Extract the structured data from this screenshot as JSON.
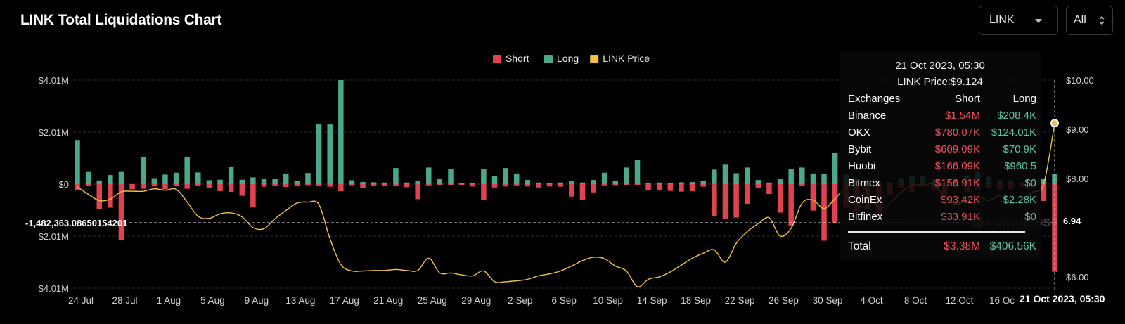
{
  "header": {
    "title": "LINK Total Liquidations Chart",
    "coin_select": "LINK",
    "range_select": "All"
  },
  "legend": [
    {
      "label": "Short",
      "color": "#e0424e"
    },
    {
      "label": "Long",
      "color": "#4aa88c"
    },
    {
      "label": "LINK Price",
      "color": "#f3c043"
    }
  ],
  "crosshair": {
    "y_left_label": "-1,482,363.08650154201",
    "y_right_label": "6.94",
    "x_label": "21 Oct 2023, 05:30"
  },
  "tooltip": {
    "time": "21 Oct 2023, 05:30",
    "price": "LINK Price:$9.124",
    "headers": [
      "Exchanges",
      "Short",
      "Long"
    ],
    "rows": [
      {
        "exchange": "Binance",
        "short": "$1.54M",
        "long": "$208.4K"
      },
      {
        "exchange": "OKX",
        "short": "$780.07K",
        "long": "$124.01K"
      },
      {
        "exchange": "Bybit",
        "short": "$609.09K",
        "long": "$70.9K"
      },
      {
        "exchange": "Huobi",
        "short": "$166.09K",
        "long": "$960.5"
      },
      {
        "exchange": "Bitmex",
        "short": "$156.91K",
        "long": "$0"
      },
      {
        "exchange": "CoinEx",
        "short": "$93.42K",
        "long": "$2.28K"
      },
      {
        "exchange": "Bitfinex",
        "short": "$33.91K",
        "long": "$0"
      }
    ],
    "total": {
      "label": "Total",
      "short": "$3.38M",
      "long": "$406.56K"
    }
  },
  "watermark": "coinglass",
  "chart_data": {
    "type": "bar",
    "y_left_ticks": [
      {
        "value": 4010000,
        "label": "$4.01M"
      },
      {
        "value": 2010000,
        "label": "$2.01M"
      },
      {
        "value": 0,
        "label": "$0"
      },
      {
        "value": -2010000,
        "label": "$2.01M"
      },
      {
        "value": -4010000,
        "label": "$4.01M"
      }
    ],
    "y_right_ticks": [
      {
        "value": 10,
        "label": "$10.00"
      },
      {
        "value": 9,
        "label": "$9.00"
      },
      {
        "value": 8,
        "label": "$8.00"
      },
      {
        "value": 6,
        "label": "$6.00"
      }
    ],
    "ylim_left": [
      -4010000,
      4010000
    ],
    "ylim_right": [
      5.77,
      10.0
    ],
    "x_tick_labels": [
      "24 Jul",
      "28 Jul",
      "1 Aug",
      "5 Aug",
      "9 Aug",
      "13 Aug",
      "17 Aug",
      "21 Aug",
      "25 Aug",
      "29 Aug",
      "2 Sep",
      "6 Sep",
      "10 Sep",
      "14 Sep",
      "18 Sep",
      "22 Sep",
      "26 Sep",
      "30 Sep",
      "4 Oct",
      "8 Oct",
      "12 Oct",
      "16 Oct"
    ],
    "x_tick_index": [
      0,
      4,
      8,
      12,
      16,
      20,
      24,
      28,
      32,
      36,
      40,
      44,
      48,
      52,
      56,
      60,
      64,
      68,
      72,
      76,
      80,
      84
    ],
    "categories_start": "24 Jul",
    "categories_end": "21 Oct",
    "n_days": 90,
    "series": [
      {
        "name": "Long",
        "color": "#4aa88c",
        "values": [
          1700000,
          470000,
          140000,
          350000,
          470000,
          0,
          1050000,
          230000,
          370000,
          440000,
          1040000,
          450000,
          150000,
          170000,
          660000,
          170000,
          260000,
          200000,
          190000,
          410000,
          130000,
          430000,
          2300000,
          2300000,
          4010000,
          150000,
          80000,
          70000,
          60000,
          620000,
          60000,
          130000,
          640000,
          200000,
          580000,
          20000,
          40000,
          570000,
          300000,
          620000,
          410000,
          160000,
          60000,
          40000,
          60000,
          130000,
          60000,
          160000,
          440000,
          130000,
          640000,
          920000,
          40000,
          60000,
          40000,
          70000,
          80000,
          130000,
          560000,
          750000,
          420000,
          640000,
          160000,
          60000,
          200000,
          580000,
          640000,
          410000,
          400000,
          1200000,
          370000,
          200000,
          180000,
          60000,
          40000,
          230000,
          320000,
          330000,
          200000,
          60000,
          190000,
          310000,
          470000,
          280000,
          150000,
          130000,
          60000,
          100000,
          190000,
          406560
        ]
      },
      {
        "name": "Short",
        "color": "#e0424e",
        "values": [
          -220000,
          -70000,
          -960000,
          -910000,
          -2170000,
          -200000,
          -180000,
          -90000,
          -200000,
          -70000,
          -180000,
          -70000,
          -150000,
          -270000,
          -300000,
          -450000,
          -900000,
          -100000,
          -80000,
          -110000,
          -80000,
          -40000,
          -80000,
          -100000,
          -270000,
          -40000,
          -140000,
          -70000,
          -60000,
          -80000,
          -120000,
          -580000,
          -50000,
          -20000,
          -30000,
          -20000,
          -90000,
          -600000,
          -130000,
          -90000,
          -50000,
          -90000,
          -130000,
          -90000,
          -100000,
          -480000,
          -620000,
          -320000,
          -50000,
          -40000,
          -20000,
          -10000,
          -230000,
          -220000,
          -260000,
          -290000,
          -270000,
          -100000,
          -1230000,
          -1330000,
          -1290000,
          -760000,
          -140000,
          -380000,
          -1100000,
          -1610000,
          -60000,
          -1020000,
          -2180000,
          -1480000,
          -900000,
          -1030000,
          -950000,
          -1280000,
          -400000,
          -130000,
          -300000,
          -60000,
          -200000,
          -450000,
          -120000,
          -300000,
          -200000,
          -140000,
          -210000,
          -200000,
          -100000,
          -150000,
          -650000,
          -3380000
        ]
      },
      {
        "name": "LINK Price",
        "color": "#f3c043",
        "values": [
          7.83,
          7.68,
          7.55,
          7.58,
          7.73,
          7.74,
          7.74,
          7.79,
          7.76,
          7.78,
          7.52,
          7.23,
          7.19,
          7.28,
          7.3,
          7.22,
          7.0,
          6.98,
          7.18,
          7.35,
          7.5,
          7.52,
          7.47,
          6.78,
          6.25,
          6.12,
          6.12,
          6.13,
          6.13,
          6.15,
          6.13,
          6.13,
          6.38,
          6.08,
          6.08,
          6.04,
          6.02,
          6.12,
          5.9,
          5.9,
          5.92,
          5.95,
          6.02,
          6.06,
          6.12,
          6.22,
          6.33,
          6.4,
          6.37,
          6.22,
          6.12,
          5.8,
          5.95,
          6.0,
          6.1,
          6.24,
          6.38,
          6.48,
          6.55,
          6.3,
          6.68,
          6.92,
          7.08,
          7.2,
          6.83,
          6.99,
          7.5,
          7.56,
          7.39,
          7.59,
          7.82,
          7.95,
          7.69,
          7.4,
          7.5,
          7.72,
          7.87,
          7.86,
          7.88,
          7.62,
          7.47,
          7.56,
          7.64,
          7.55,
          7.65,
          7.49,
          7.56,
          7.72,
          7.89,
          9.124
        ]
      }
    ]
  }
}
